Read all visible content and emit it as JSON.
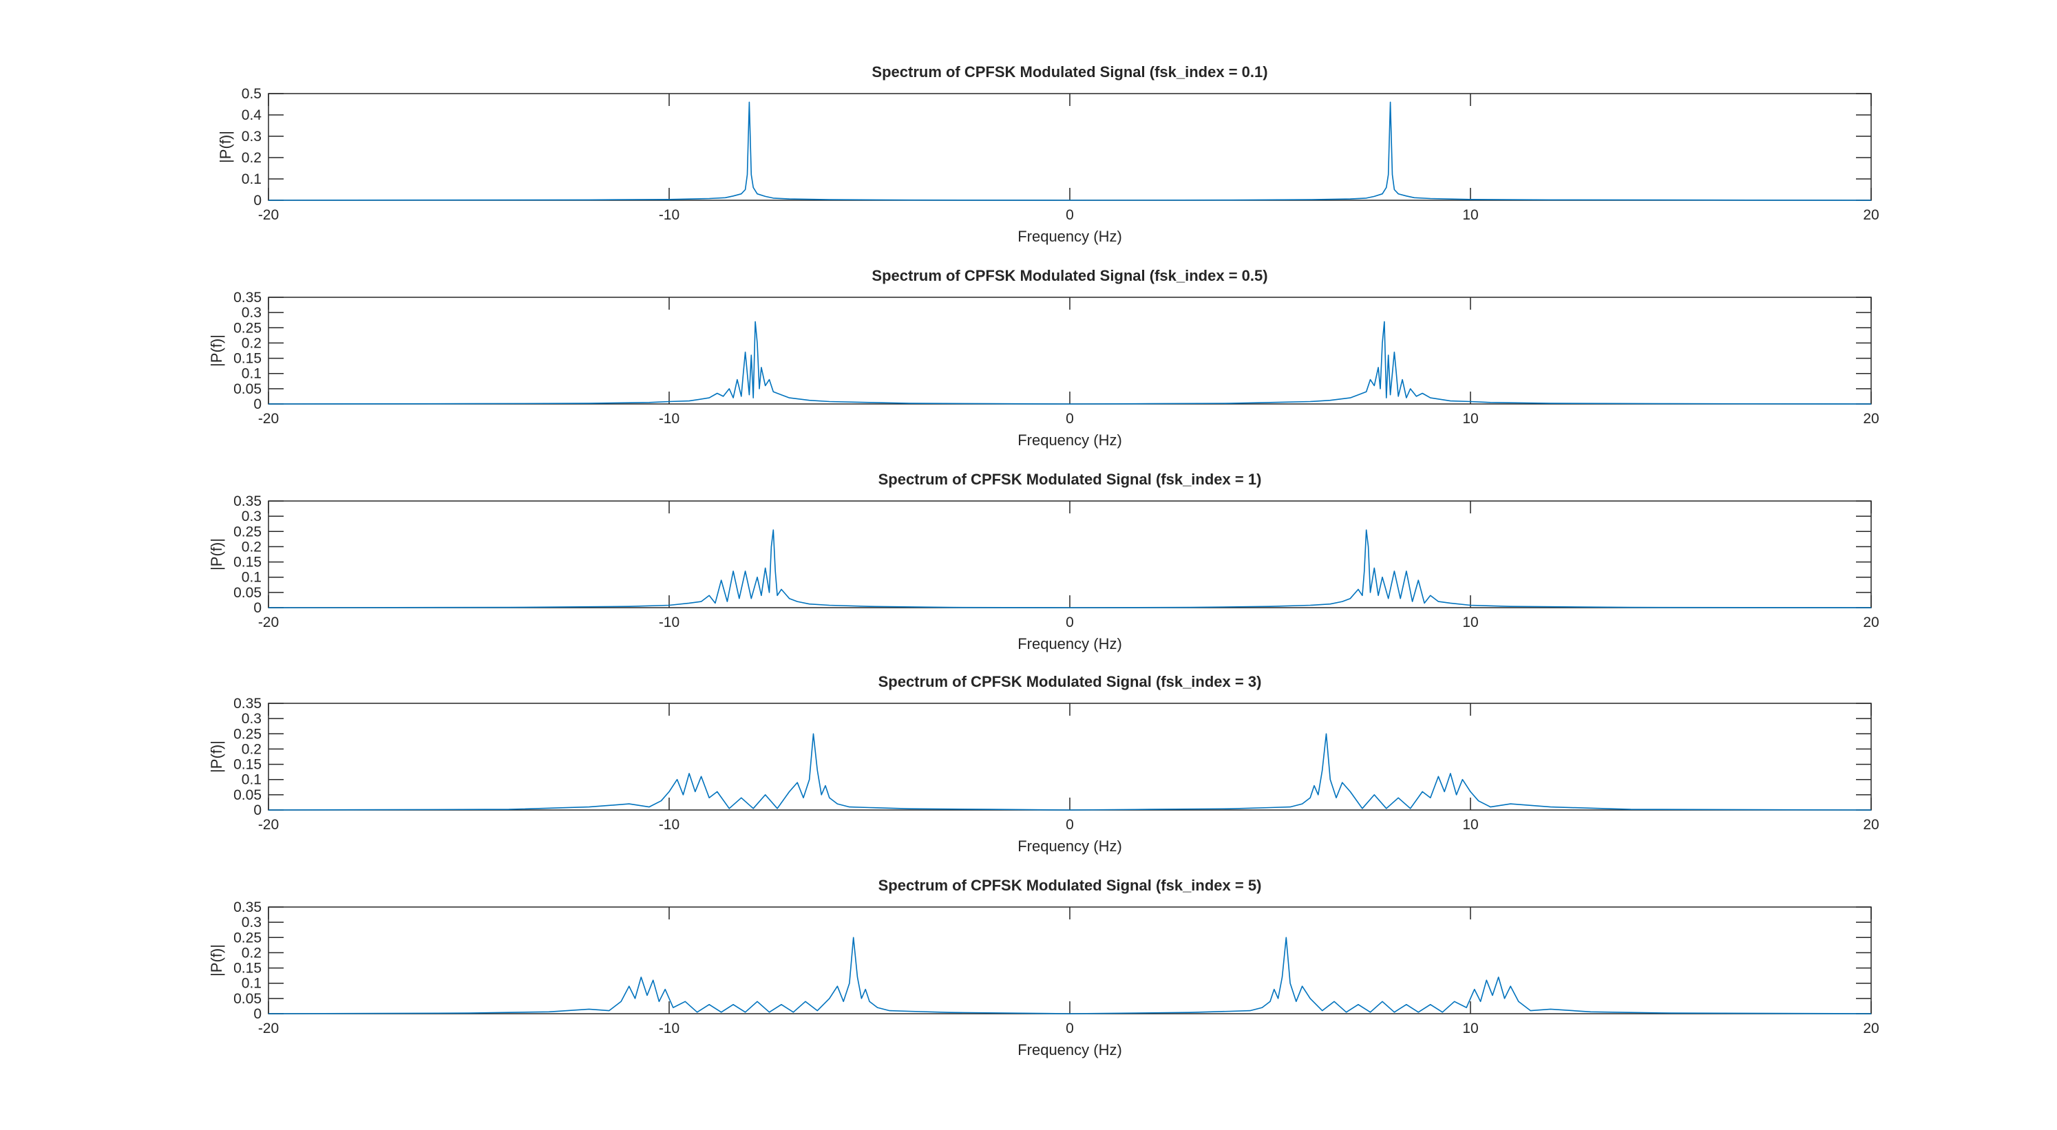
{
  "chart_data": [
    {
      "type": "line",
      "title": "Spectrum of CPFSK Modulated Signal (fsk_index = 0.1)",
      "xlabel": "Frequency (Hz)",
      "ylabel": "|P(f)|",
      "xlim": [
        -20,
        20
      ],
      "ylim": [
        0,
        0.5
      ],
      "xticks": [
        -20,
        -10,
        0,
        10,
        20
      ],
      "yticks": [
        0,
        0.1,
        0.2,
        0.3,
        0.4,
        0.5
      ],
      "xtick_labels": [
        "-20",
        "-10",
        "0",
        "10",
        "20"
      ],
      "ytick_labels": [
        "0",
        "0.1",
        "0.2",
        "0.3",
        "0.4",
        "0.5"
      ],
      "series": [
        {
          "name": "|P(f)|",
          "x": [
            -20,
            -16,
            -12,
            -10,
            -9,
            -8.6,
            -8.4,
            -8.2,
            -8.1,
            -8.05,
            -8.0,
            -7.95,
            -7.9,
            -7.8,
            -7.6,
            -7.4,
            -7.0,
            -6.0,
            -4.0,
            0,
            4.0,
            6.0,
            7.0,
            7.4,
            7.6,
            7.8,
            7.9,
            7.95,
            8.0,
            8.05,
            8.1,
            8.2,
            8.4,
            8.6,
            9.0,
            10.0,
            12.0,
            16.0,
            20.0
          ],
          "y": [
            0.0,
            0.001,
            0.002,
            0.004,
            0.008,
            0.012,
            0.02,
            0.03,
            0.05,
            0.12,
            0.46,
            0.12,
            0.06,
            0.03,
            0.018,
            0.01,
            0.006,
            0.003,
            0.001,
            0.0,
            0.001,
            0.003,
            0.006,
            0.01,
            0.018,
            0.03,
            0.06,
            0.12,
            0.46,
            0.12,
            0.05,
            0.03,
            0.02,
            0.012,
            0.008,
            0.004,
            0.002,
            0.001,
            0.0
          ]
        }
      ]
    },
    {
      "type": "line",
      "title": "Spectrum of CPFSK Modulated Signal (fsk_index = 0.5)",
      "xlabel": "Frequency (Hz)",
      "ylabel": "|P(f)|",
      "xlim": [
        -20,
        20
      ],
      "ylim": [
        0,
        0.35
      ],
      "xticks": [
        -20,
        -10,
        0,
        10,
        20
      ],
      "yticks": [
        0,
        0.05,
        0.1,
        0.15,
        0.2,
        0.25,
        0.3,
        0.35
      ],
      "xtick_labels": [
        "-20",
        "-10",
        "0",
        "10",
        "20"
      ],
      "ytick_labels": [
        "0",
        "0.05",
        "0.1",
        "0.15",
        "0.2",
        "0.25",
        "0.3",
        "0.35"
      ],
      "series": [
        {
          "name": "|P(f)|",
          "x": [
            -20,
            -15,
            -12,
            -10.5,
            -10,
            -9.5,
            -9.0,
            -8.8,
            -8.65,
            -8.5,
            -8.4,
            -8.3,
            -8.2,
            -8.15,
            -8.1,
            -8.0,
            -7.95,
            -7.9,
            -7.85,
            -7.8,
            -7.75,
            -7.7,
            -7.6,
            -7.5,
            -7.4,
            -7.2,
            -7.0,
            -6.5,
            -6.0,
            -5.0,
            -4.0,
            -2.0,
            0,
            2.0,
            4.0,
            5.0,
            6.0,
            6.5,
            7.0,
            7.2,
            7.4,
            7.5,
            7.6,
            7.7,
            7.75,
            7.8,
            7.85,
            7.9,
            7.95,
            8.0,
            8.1,
            8.15,
            8.2,
            8.3,
            8.4,
            8.5,
            8.65,
            8.8,
            9.0,
            9.5,
            10.0,
            10.5,
            12.0,
            15.0,
            20.0
          ],
          "y": [
            0.0,
            0.001,
            0.002,
            0.005,
            0.008,
            0.01,
            0.02,
            0.035,
            0.025,
            0.05,
            0.02,
            0.08,
            0.025,
            0.1,
            0.17,
            0.03,
            0.16,
            0.02,
            0.27,
            0.2,
            0.05,
            0.12,
            0.06,
            0.08,
            0.04,
            0.03,
            0.02,
            0.012,
            0.008,
            0.005,
            0.002,
            0.001,
            0.0,
            0.001,
            0.002,
            0.005,
            0.008,
            0.012,
            0.02,
            0.03,
            0.04,
            0.08,
            0.06,
            0.12,
            0.05,
            0.2,
            0.27,
            0.02,
            0.16,
            0.03,
            0.17,
            0.1,
            0.025,
            0.08,
            0.02,
            0.05,
            0.025,
            0.035,
            0.02,
            0.01,
            0.008,
            0.005,
            0.002,
            0.001,
            0.0
          ]
        }
      ]
    },
    {
      "type": "line",
      "title": "Spectrum of CPFSK Modulated Signal (fsk_index = 1)",
      "xlabel": "Frequency (Hz)",
      "ylabel": "|P(f)|",
      "xlim": [
        -20,
        20
      ],
      "ylim": [
        0,
        0.35
      ],
      "xticks": [
        -20,
        -10,
        0,
        10,
        20
      ],
      "yticks": [
        0,
        0.05,
        0.1,
        0.15,
        0.2,
        0.25,
        0.3,
        0.35
      ],
      "xtick_labels": [
        "-20",
        "-10",
        "0",
        "10",
        "20"
      ],
      "ytick_labels": [
        "0",
        "0.05",
        "0.1",
        "0.15",
        "0.2",
        "0.25",
        "0.3",
        "0.35"
      ],
      "series": [
        {
          "name": "|P(f)|",
          "x": [
            -20,
            -14,
            -11,
            -10,
            -9.5,
            -9.2,
            -9.0,
            -8.85,
            -8.7,
            -8.55,
            -8.4,
            -8.25,
            -8.1,
            -7.95,
            -7.8,
            -7.7,
            -7.6,
            -7.5,
            -7.45,
            -7.4,
            -7.35,
            -7.3,
            -7.2,
            -7.0,
            -6.8,
            -6.5,
            -6.0,
            -5.0,
            -3.0,
            0,
            3.0,
            5.0,
            6.0,
            6.5,
            6.8,
            7.0,
            7.2,
            7.3,
            7.35,
            7.4,
            7.45,
            7.5,
            7.6,
            7.7,
            7.8,
            7.95,
            8.1,
            8.25,
            8.4,
            8.55,
            8.7,
            8.85,
            9.0,
            9.2,
            9.5,
            10.0,
            11.0,
            14.0,
            20.0
          ],
          "y": [
            0.0,
            0.001,
            0.004,
            0.008,
            0.015,
            0.02,
            0.04,
            0.015,
            0.09,
            0.02,
            0.12,
            0.03,
            0.12,
            0.03,
            0.1,
            0.04,
            0.13,
            0.05,
            0.2,
            0.255,
            0.12,
            0.04,
            0.06,
            0.03,
            0.02,
            0.012,
            0.008,
            0.004,
            0.001,
            0.0,
            0.001,
            0.004,
            0.008,
            0.012,
            0.02,
            0.03,
            0.06,
            0.04,
            0.12,
            0.255,
            0.2,
            0.05,
            0.13,
            0.04,
            0.1,
            0.03,
            0.12,
            0.03,
            0.12,
            0.02,
            0.09,
            0.015,
            0.04,
            0.02,
            0.015,
            0.008,
            0.004,
            0.001,
            0.0
          ]
        }
      ]
    },
    {
      "type": "line",
      "title": "Spectrum of CPFSK Modulated Signal (fsk_index = 3)",
      "xlabel": "Frequency (Hz)",
      "ylabel": "|P(f)|",
      "xlim": [
        -20,
        20
      ],
      "ylim": [
        0,
        0.35
      ],
      "xticks": [
        -20,
        -10,
        0,
        10,
        20
      ],
      "yticks": [
        0,
        0.05,
        0.1,
        0.15,
        0.2,
        0.25,
        0.3,
        0.35
      ],
      "xtick_labels": [
        "-20",
        "-10",
        "0",
        "10",
        "20"
      ],
      "ytick_labels": [
        "0",
        "0.05",
        "0.1",
        "0.15",
        "0.2",
        "0.25",
        "0.3",
        "0.35"
      ],
      "series": [
        {
          "name": "|P(f)|",
          "x": [
            -20,
            -14,
            -12,
            -11,
            -10.5,
            -10.2,
            -10.0,
            -9.8,
            -9.65,
            -9.5,
            -9.35,
            -9.2,
            -9.0,
            -8.8,
            -8.5,
            -8.2,
            -7.9,
            -7.6,
            -7.3,
            -7.0,
            -6.8,
            -6.65,
            -6.5,
            -6.4,
            -6.3,
            -6.2,
            -6.1,
            -6.0,
            -5.8,
            -5.5,
            -5.0,
            -4.0,
            -2.0,
            0,
            2.0,
            4.0,
            5.0,
            5.5,
            5.8,
            6.0,
            6.1,
            6.2,
            6.3,
            6.4,
            6.5,
            6.65,
            6.8,
            7.0,
            7.3,
            7.6,
            7.9,
            8.2,
            8.5,
            8.8,
            9.0,
            9.2,
            9.35,
            9.5,
            9.65,
            9.8,
            10.0,
            10.2,
            10.5,
            11.0,
            12.0,
            14.0,
            20.0
          ],
          "y": [
            0.0,
            0.002,
            0.01,
            0.02,
            0.01,
            0.03,
            0.06,
            0.1,
            0.05,
            0.12,
            0.06,
            0.11,
            0.04,
            0.06,
            0.005,
            0.04,
            0.005,
            0.05,
            0.005,
            0.06,
            0.09,
            0.04,
            0.1,
            0.25,
            0.13,
            0.05,
            0.08,
            0.04,
            0.02,
            0.01,
            0.008,
            0.004,
            0.002,
            0.0,
            0.002,
            0.004,
            0.008,
            0.01,
            0.02,
            0.04,
            0.08,
            0.05,
            0.13,
            0.25,
            0.1,
            0.04,
            0.09,
            0.06,
            0.005,
            0.05,
            0.005,
            0.04,
            0.005,
            0.06,
            0.04,
            0.11,
            0.06,
            0.12,
            0.05,
            0.1,
            0.06,
            0.03,
            0.01,
            0.02,
            0.01,
            0.002,
            0.0
          ]
        }
      ]
    },
    {
      "type": "line",
      "title": "Spectrum of CPFSK Modulated Signal (fsk_index = 5)",
      "xlabel": "Frequency (Hz)",
      "ylabel": "|P(f)|",
      "xlim": [
        -20,
        20
      ],
      "ylim": [
        0,
        0.35
      ],
      "xticks": [
        -20,
        -10,
        0,
        10,
        20
      ],
      "yticks": [
        0,
        0.05,
        0.1,
        0.15,
        0.2,
        0.25,
        0.3,
        0.35
      ],
      "xtick_labels": [
        "-20",
        "-10",
        "0",
        "10",
        "20"
      ],
      "ytick_labels": [
        "0",
        "0.05",
        "0.1",
        "0.15",
        "0.2",
        "0.25",
        "0.3",
        "0.35"
      ],
      "series": [
        {
          "name": "|P(f)|",
          "x": [
            -20,
            -15,
            -13,
            -12,
            -11.5,
            -11.2,
            -11.0,
            -10.85,
            -10.7,
            -10.55,
            -10.4,
            -10.25,
            -10.1,
            -9.9,
            -9.6,
            -9.3,
            -9.0,
            -8.7,
            -8.4,
            -8.1,
            -7.8,
            -7.5,
            -7.2,
            -6.9,
            -6.6,
            -6.3,
            -6.0,
            -5.8,
            -5.65,
            -5.5,
            -5.4,
            -5.3,
            -5.2,
            -5.1,
            -5.0,
            -4.8,
            -4.5,
            -4.0,
            -3.0,
            0,
            3.0,
            4.0,
            4.5,
            4.8,
            5.0,
            5.1,
            5.2,
            5.3,
            5.4,
            5.5,
            5.65,
            5.8,
            6.0,
            6.3,
            6.6,
            6.9,
            7.2,
            7.5,
            7.8,
            8.1,
            8.4,
            8.7,
            9.0,
            9.3,
            9.6,
            9.9,
            10.1,
            10.25,
            10.4,
            10.55,
            10.7,
            10.85,
            11.0,
            11.2,
            11.5,
            12.0,
            13.0,
            15.0,
            20.0
          ],
          "y": [
            0.0,
            0.002,
            0.006,
            0.015,
            0.01,
            0.04,
            0.09,
            0.05,
            0.12,
            0.06,
            0.11,
            0.04,
            0.08,
            0.02,
            0.04,
            0.005,
            0.03,
            0.005,
            0.03,
            0.005,
            0.04,
            0.005,
            0.03,
            0.005,
            0.04,
            0.01,
            0.05,
            0.09,
            0.04,
            0.1,
            0.25,
            0.12,
            0.05,
            0.08,
            0.04,
            0.02,
            0.01,
            0.008,
            0.004,
            0.0,
            0.004,
            0.008,
            0.01,
            0.02,
            0.04,
            0.08,
            0.05,
            0.12,
            0.25,
            0.1,
            0.04,
            0.09,
            0.05,
            0.01,
            0.04,
            0.005,
            0.03,
            0.005,
            0.04,
            0.005,
            0.03,
            0.005,
            0.03,
            0.005,
            0.04,
            0.02,
            0.08,
            0.04,
            0.11,
            0.06,
            0.12,
            0.05,
            0.09,
            0.04,
            0.01,
            0.015,
            0.006,
            0.002,
            0.0
          ]
        }
      ]
    }
  ],
  "style": {
    "line_color": "#0072BD",
    "axis_color": "#262626",
    "background": "#ffffff"
  }
}
